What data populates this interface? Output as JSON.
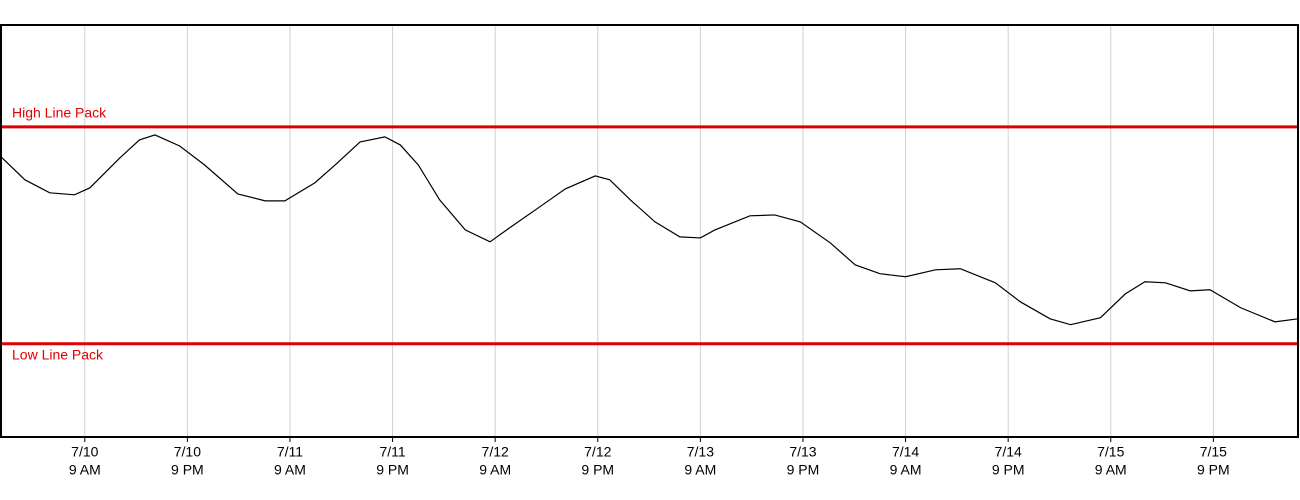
{
  "chart_data": {
    "type": "line",
    "x": [
      -0.8,
      2.0,
      4.9,
      7.8,
      9.6,
      13.1,
      15.4,
      17.2,
      20.1,
      23.0,
      26.9,
      30.1,
      32.4,
      35.9,
      38.3,
      41.2,
      44.1,
      45.9,
      48.0,
      50.5,
      53.5,
      56.4,
      58.7,
      62.2,
      65.2,
      68.7,
      70.4,
      72.8,
      75.7,
      78.6,
      81.0,
      82.7,
      86.8,
      89.7,
      92.7,
      96.2,
      99.1,
      102.0,
      105.0,
      108.5,
      111.4,
      115.5,
      118.4,
      121.9,
      124.3,
      127.8,
      130.7,
      133.0,
      135.4,
      138.3,
      140.6,
      144.2,
      148.2,
      150.9
    ],
    "series": [
      {
        "color": "#000000",
        "values": [
          86.2,
          75.6,
          69.6,
          68.7,
          71.9,
          85.7,
          94.0,
          96.3,
          91.2,
          82.5,
          69.1,
          65.9,
          65.9,
          74.2,
          82.5,
          93.1,
          95.4,
          91.7,
          82.5,
          66.4,
          52.5,
          47.0,
          53.5,
          63.1,
          71.4,
          77.4,
          75.6,
          66.4,
          56.2,
          49.3,
          48.8,
          52.5,
          59.0,
          59.4,
          56.2,
          46.5,
          36.4,
          32.3,
          30.9,
          34.1,
          34.6,
          28.1,
          19.4,
          11.5,
          8.8,
          12.0,
          23.0,
          28.6,
          28.1,
          24.4,
          24.9,
          16.6,
          10.1,
          11.5
        ]
      }
    ],
    "reference_lines": [
      {
        "label": "High Line Pack",
        "value": 100,
        "color": "#e00000"
      },
      {
        "label": "Low Line Pack",
        "value": 0,
        "color": "#e00000"
      }
    ],
    "xlim": [
      -0.8,
      150.9
    ],
    "ylim": [
      -43,
      147
    ],
    "xticks": [
      {
        "value": 9,
        "label": [
          "7/10",
          "9 AM"
        ]
      },
      {
        "value": 21,
        "label": [
          "7/10",
          "9 PM"
        ]
      },
      {
        "value": 33,
        "label": [
          "7/11",
          "9 AM"
        ]
      },
      {
        "value": 45,
        "label": [
          "7/11",
          "9 PM"
        ]
      },
      {
        "value": 57,
        "label": [
          "7/12",
          "9 AM"
        ]
      },
      {
        "value": 69,
        "label": [
          "7/12",
          "9 PM"
        ]
      },
      {
        "value": 81,
        "label": [
          "7/13",
          "9 AM"
        ]
      },
      {
        "value": 93,
        "label": [
          "7/13",
          "9 PM"
        ]
      },
      {
        "value": 105,
        "label": [
          "7/14",
          "9 AM"
        ]
      },
      {
        "value": 117,
        "label": [
          "7/14",
          "9 PM"
        ]
      },
      {
        "value": 129,
        "label": [
          "7/15",
          "9 AM"
        ]
      },
      {
        "value": 141,
        "label": [
          "7/15",
          "9 PM"
        ]
      }
    ],
    "grid": true
  }
}
